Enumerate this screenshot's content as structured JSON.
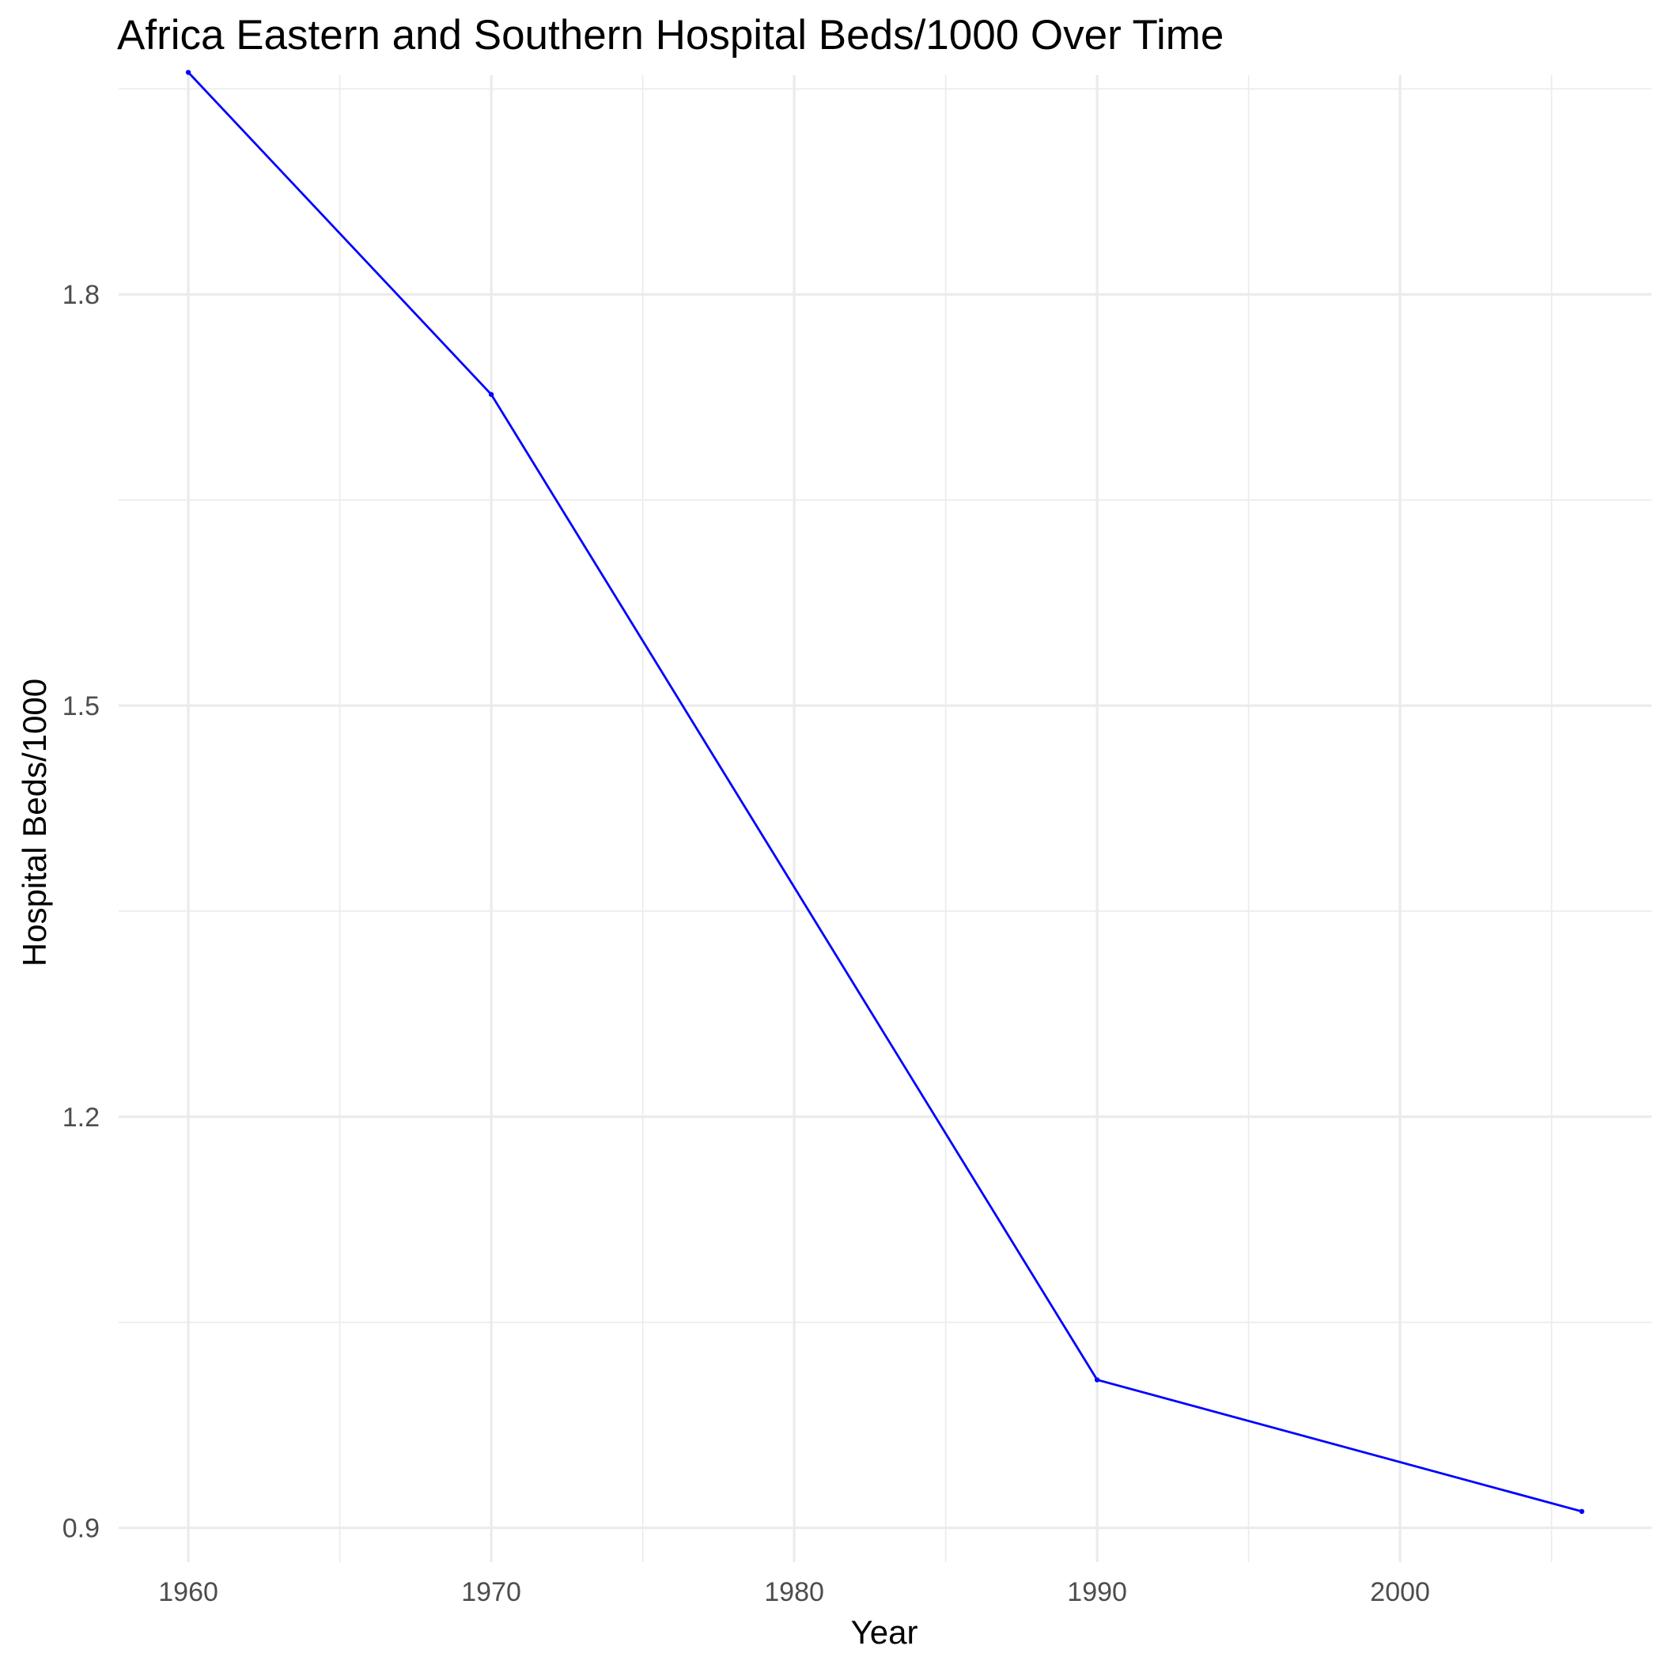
{
  "colors": {
    "background": "#ffffff",
    "grid": "#ebebeb",
    "line": "#0000ff",
    "tick_text": "#4d4d4d",
    "title_text": "#000000"
  },
  "chart_data": {
    "type": "line",
    "title": "Africa Eastern and Southern Hospital Beds/1000 Over Time",
    "xlabel": "Year",
    "ylabel": "Hospital Beds/1000",
    "xlim": [
      1957.7,
      2008.3
    ],
    "ylim": [
      0.875,
      1.96
    ],
    "x_ticks": [
      1960,
      1970,
      1980,
      1990,
      2000
    ],
    "x_tick_labels": [
      "1960",
      "1970",
      "1980",
      "1990",
      "2000"
    ],
    "y_ticks": [
      0.9,
      1.2,
      1.5,
      1.8
    ],
    "y_tick_labels": [
      "0.9",
      "1.2",
      "1.5",
      "1.8"
    ],
    "x_minor_ticks": [
      1965,
      1975,
      1985,
      1995,
      2005
    ],
    "y_minor_ticks": [
      1.05,
      1.35,
      1.65,
      1.95
    ],
    "grid": true,
    "legend": "none",
    "series": [
      {
        "color": "#0000ff",
        "x": [
          1960,
          1970,
          1990,
          2006
        ],
        "y": [
          1.962,
          1.727,
          1.008,
          0.912
        ]
      }
    ]
  }
}
